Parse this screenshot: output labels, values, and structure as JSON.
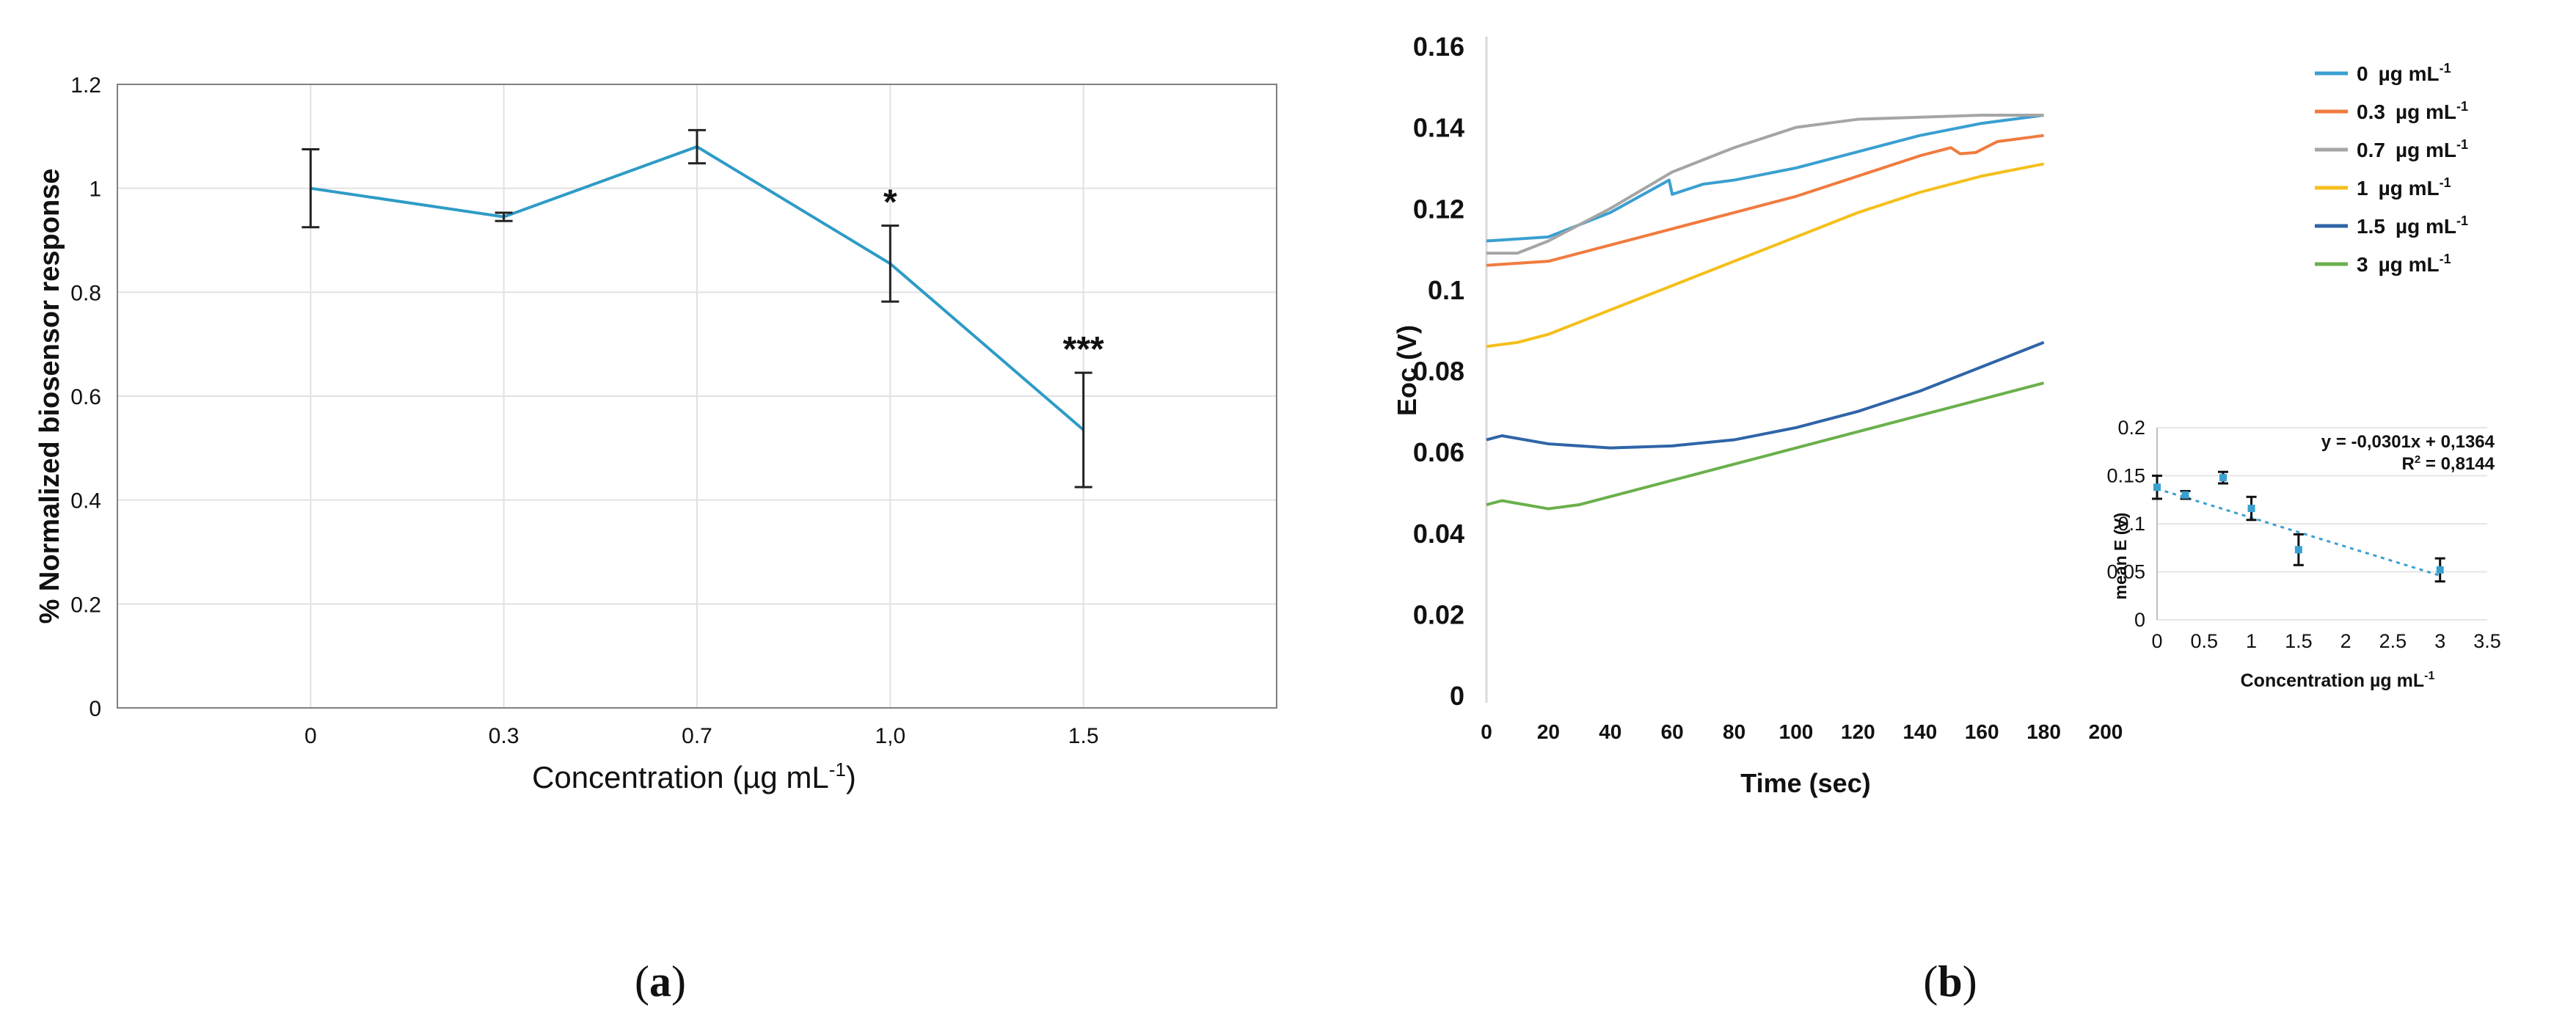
{
  "figure_a": {
    "panel_label": "a",
    "chart_data": {
      "type": "line",
      "categories": [
        "0",
        "0.3",
        "0.7",
        "1,0",
        "1.5"
      ],
      "values": [
        1.0,
        0.945,
        1.08,
        0.855,
        0.535
      ],
      "errors": [
        0.075,
        0.008,
        0.032,
        0.073,
        0.11
      ],
      "significance": [
        "",
        "",
        "",
        "*",
        "***"
      ],
      "ylim": [
        0,
        1.2
      ],
      "yticks": [
        "0",
        "0.2",
        "0.4",
        "0.6",
        "0.8",
        "1",
        "1.2"
      ],
      "ylabel": "% Normalized biosensor response",
      "xlabel_main": "Concentration (µg mL",
      "xlabel_sup": "-1",
      "xlabel_end": ")",
      "line_color": "#2E9BC6"
    }
  },
  "figure_b": {
    "panel_label": "b",
    "chart_data": {
      "type": "line",
      "xlabel": "Time (sec)",
      "ylabel": "Eoc (V)",
      "xlim": [
        0,
        200
      ],
      "ylim": [
        0,
        0.16
      ],
      "xticks": [
        "0",
        "20",
        "40",
        "60",
        "80",
        "100",
        "120",
        "140",
        "160",
        "180",
        "200"
      ],
      "yticks": [
        "0",
        "0.02",
        "0.04",
        "0.06",
        "0.08",
        "0.1",
        "0.12",
        "0.14",
        "0.16"
      ],
      "legend_position": "top-right",
      "series": [
        {
          "name": "0",
          "unit": "µg mL",
          "sup": "-1",
          "color": "#3A9FD1",
          "points": [
            [
              0,
              0.112
            ],
            [
              20,
              0.113
            ],
            [
              40,
              0.119
            ],
            [
              59,
              0.127
            ],
            [
              60,
              0.1235
            ],
            [
              70,
              0.126
            ],
            [
              80,
              0.127
            ],
            [
              100,
              0.13
            ],
            [
              120,
              0.134
            ],
            [
              140,
              0.138
            ],
            [
              160,
              0.141
            ],
            [
              180,
              0.143
            ]
          ]
        },
        {
          "name": "0.3",
          "unit": "µg mL",
          "sup": "-1",
          "color": "#F07B3F",
          "points": [
            [
              0,
              0.106
            ],
            [
              20,
              0.107
            ],
            [
              40,
              0.111
            ],
            [
              60,
              0.115
            ],
            [
              80,
              0.119
            ],
            [
              100,
              0.123
            ],
            [
              120,
              0.128
            ],
            [
              140,
              0.133
            ],
            [
              150,
              0.135
            ],
            [
              153,
              0.1335
            ],
            [
              158,
              0.1338
            ],
            [
              165,
              0.1365
            ],
            [
              180,
              0.138
            ]
          ]
        },
        {
          "name": "0.7",
          "unit": "µg mL",
          "sup": "-1",
          "color": "#A5A5A5",
          "points": [
            [
              0,
              0.109
            ],
            [
              10,
              0.109
            ],
            [
              20,
              0.112
            ],
            [
              40,
              0.12
            ],
            [
              60,
              0.129
            ],
            [
              80,
              0.135
            ],
            [
              100,
              0.14
            ],
            [
              120,
              0.142
            ],
            [
              140,
              0.1425
            ],
            [
              160,
              0.143
            ],
            [
              180,
              0.143
            ]
          ]
        },
        {
          "name": "1",
          "unit": "µg mL",
          "sup": "-1",
          "color": "#F5BF1B",
          "points": [
            [
              0,
              0.086
            ],
            [
              10,
              0.087
            ],
            [
              20,
              0.089
            ],
            [
              40,
              0.095
            ],
            [
              60,
              0.101
            ],
            [
              80,
              0.107
            ],
            [
              100,
              0.113
            ],
            [
              120,
              0.119
            ],
            [
              140,
              0.124
            ],
            [
              160,
              0.128
            ],
            [
              180,
              0.131
            ]
          ]
        },
        {
          "name": "1.5",
          "unit": "µg mL",
          "sup": "-1",
          "color": "#2F64A7",
          "points": [
            [
              0,
              0.063
            ],
            [
              5,
              0.064
            ],
            [
              20,
              0.062
            ],
            [
              40,
              0.061
            ],
            [
              60,
              0.0615
            ],
            [
              80,
              0.063
            ],
            [
              100,
              0.066
            ],
            [
              120,
              0.07
            ],
            [
              140,
              0.075
            ],
            [
              160,
              0.081
            ],
            [
              180,
              0.087
            ]
          ]
        },
        {
          "name": "3",
          "unit": "µg mL",
          "sup": "-1",
          "color": "#6AB04C",
          "points": [
            [
              0,
              0.047
            ],
            [
              5,
              0.048
            ],
            [
              20,
              0.046
            ],
            [
              30,
              0.047
            ],
            [
              40,
              0.049
            ],
            [
              60,
              0.053
            ],
            [
              80,
              0.057
            ],
            [
              100,
              0.061
            ],
            [
              120,
              0.065
            ],
            [
              140,
              0.069
            ],
            [
              160,
              0.073
            ],
            [
              180,
              0.077
            ]
          ]
        }
      ],
      "inset": {
        "type": "scatter",
        "xlabel": "Concentration µg mL",
        "xlabel_sup": "-1",
        "ylabel": "mean E (V)",
        "xlim": [
          0,
          3.5
        ],
        "ylim": [
          0,
          0.2
        ],
        "xticks": [
          "0",
          "0.5",
          "1",
          "1.5",
          "2",
          "2.5",
          "3",
          "3.5"
        ],
        "yticks": [
          "0",
          "0.05",
          "0.1",
          "0.15",
          "0.2"
        ],
        "x": [
          0,
          0.3,
          0.7,
          1,
          1.5,
          3
        ],
        "y": [
          0.138,
          0.13,
          0.148,
          0.116,
          0.073,
          0.052
        ],
        "errors": [
          0.012,
          0.004,
          0.006,
          0.012,
          0.016,
          0.012
        ],
        "trend_slope": -0.0301,
        "trend_intercept": 0.1364,
        "equation": "y = -0,0301x + 0,1364",
        "r2_main": "R",
        "r2_sup": "2",
        "r2_value": " = 0,8144",
        "color": "#3A9FD1"
      }
    }
  }
}
